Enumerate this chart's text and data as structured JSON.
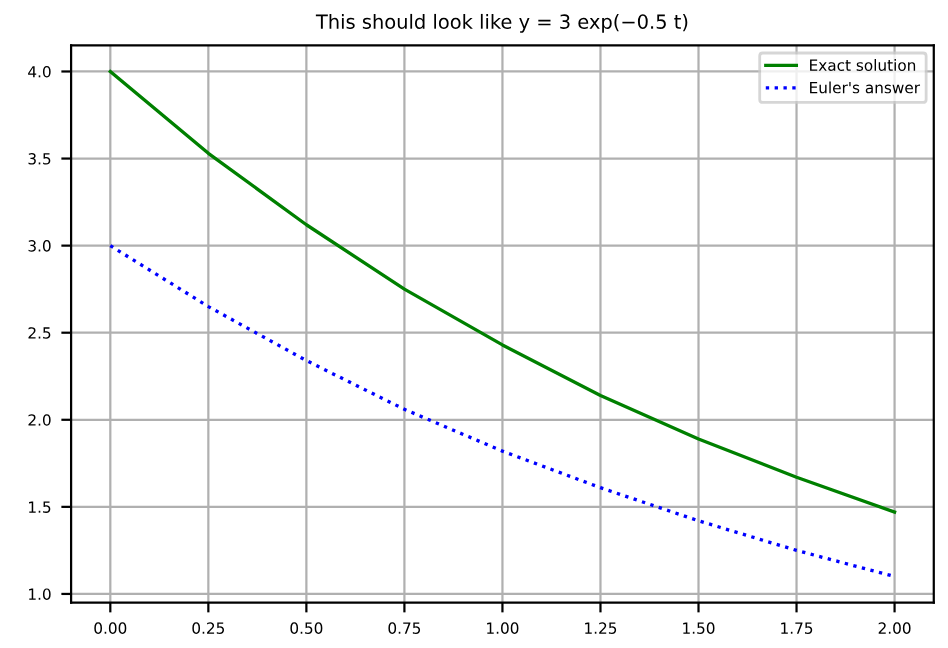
{
  "chart_data": {
    "type": "line",
    "title": "This should look like y = 3 exp(−0.5 t)",
    "x": [
      0,
      0.25,
      0.5,
      0.75,
      1.0,
      1.25,
      1.5,
      1.75,
      2.0
    ],
    "series": [
      {
        "name": "Exact solution",
        "color": "#008000",
        "line_style": "solid",
        "values": [
          4.0,
          3.53,
          3.12,
          2.75,
          2.43,
          2.14,
          1.89,
          1.67,
          1.47
        ]
      },
      {
        "name": "Euler's answer",
        "color": "#0000ff",
        "line_style": "dotted",
        "values": [
          3.0,
          2.65,
          2.34,
          2.06,
          1.82,
          1.61,
          1.42,
          1.25,
          1.1
        ]
      }
    ],
    "xlim": [
      -0.1,
      2.1
    ],
    "ylim": [
      0.95,
      4.15
    ],
    "xticks": [
      {
        "value": 0,
        "label": "0.00"
      },
      {
        "value": 0.25,
        "label": "0.25"
      },
      {
        "value": 0.5,
        "label": "0.50"
      },
      {
        "value": 0.75,
        "label": "0.75"
      },
      {
        "value": 1.0,
        "label": "1.00"
      },
      {
        "value": 1.25,
        "label": "1.25"
      },
      {
        "value": 1.5,
        "label": "1.50"
      },
      {
        "value": 1.75,
        "label": "1.75"
      },
      {
        "value": 2.0,
        "label": "2.00"
      }
    ],
    "yticks": [
      {
        "value": 1,
        "label": "1.0"
      },
      1.5,
      {
        "value": 2,
        "label": "2.0"
      },
      2.5,
      {
        "value": 3,
        "label": "3.0"
      },
      3.5,
      {
        "value": 4,
        "label": "4.0"
      }
    ],
    "grid": true,
    "legend": "top right"
  }
}
